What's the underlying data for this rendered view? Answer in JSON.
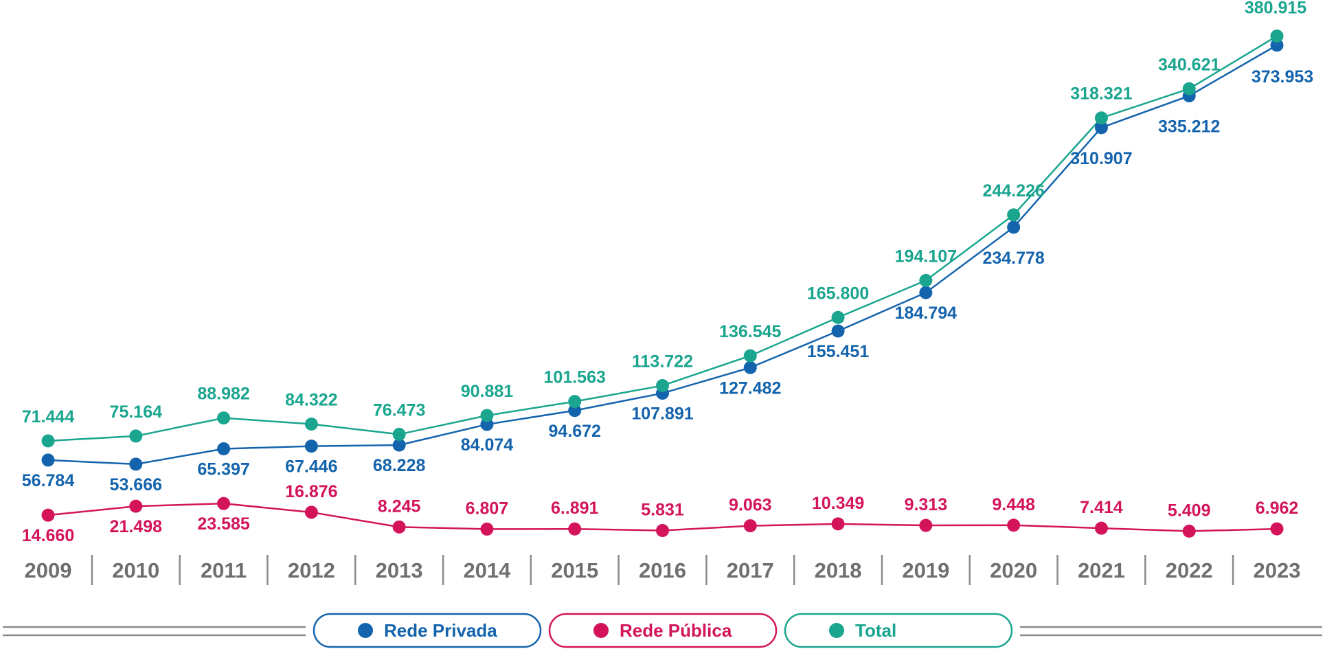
{
  "chart_data": {
    "type": "line",
    "title": "",
    "xlabel": "",
    "ylabel": "",
    "ylim": [
      0,
      400000
    ],
    "grid": false,
    "legend_position": "bottom-center",
    "categories": [
      "2009",
      "2010",
      "2011",
      "2012",
      "2013",
      "2014",
      "2015",
      "2016",
      "2017",
      "2018",
      "2019",
      "2020",
      "2021",
      "2022",
      "2023"
    ],
    "series": [
      {
        "name": "Rede Privada",
        "color": "#1464ad",
        "values": [
          56784,
          53666,
          65397,
          67446,
          68228,
          84074,
          94672,
          107891,
          127482,
          155451,
          184794,
          234778,
          310907,
          335212,
          373953
        ],
        "labels": [
          "56.784",
          "53.666",
          "65.397",
          "67.446",
          "68.228",
          "84.074",
          "94.672",
          "107.891",
          "127.482",
          "155.451",
          "184.794",
          "234.778",
          "310.907",
          "335.212",
          "373.953"
        ]
      },
      {
        "name": "Rede Pública",
        "color": "#d3145a",
        "values": [
          14660,
          21498,
          23585,
          16876,
          8245,
          6807,
          6891,
          5831,
          9063,
          10349,
          9313,
          9448,
          7414,
          5409,
          6962
        ],
        "labels": [
          "14.660",
          "21.498",
          "23.585",
          "16.876",
          "8.245",
          "6.807",
          "6..891",
          "5.831",
          "9.063",
          "10.349",
          "9.313",
          "9.448",
          "7.414",
          "5.409",
          "6.962"
        ]
      },
      {
        "name": "Total",
        "color": "#1aa58f",
        "values": [
          71444,
          75164,
          88982,
          84322,
          76473,
          90881,
          101563,
          113722,
          136545,
          165800,
          194107,
          244226,
          318321,
          340621,
          380915
        ],
        "labels": [
          "71.444",
          "75.164",
          "88.982",
          "84.322",
          "76.473",
          "90.881",
          "101.563",
          "113.722",
          "136.545",
          "165.800",
          "194.107",
          "244.226",
          "318.321",
          "340.621",
          "380.915"
        ]
      }
    ]
  }
}
